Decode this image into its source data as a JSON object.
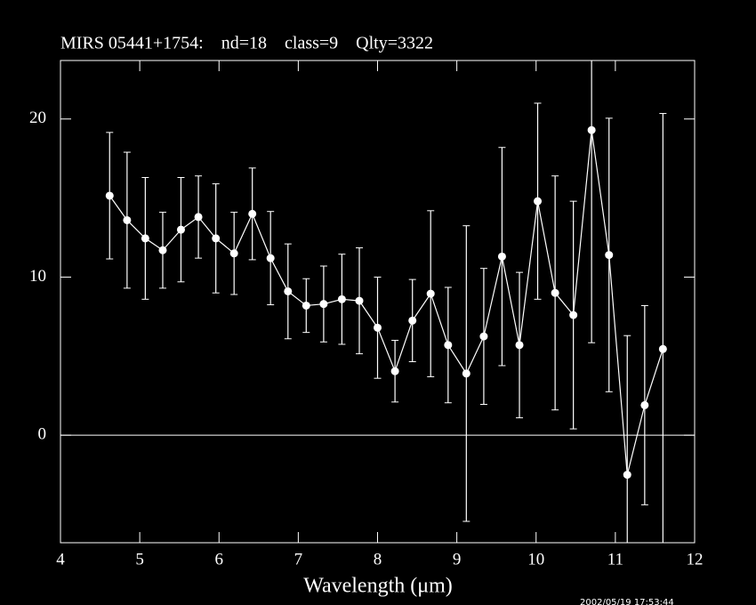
{
  "chart_data": {
    "type": "errorbar",
    "title": "MIRS 05441+1754:    nd=18    class=9    Qlty=3322",
    "x_label": "Wavelength (μm)",
    "timestamp": "2002/05/19 17:53:44",
    "color": "#ffffff",
    "zero_line": true,
    "xlim": [
      4,
      12
    ],
    "xticks": [
      4,
      5,
      6,
      7,
      8,
      9,
      10,
      11,
      12
    ],
    "ylim": [
      -6.8,
      23.7
    ],
    "yticks": [
      0,
      10,
      20
    ],
    "x": [
      4.62,
      4.84,
      5.07,
      5.29,
      5.52,
      5.74,
      5.96,
      6.19,
      6.42,
      6.65,
      6.87,
      7.1,
      7.32,
      7.55,
      7.77,
      8.0,
      8.22,
      8.44,
      8.67,
      8.89,
      9.12,
      9.34,
      9.57,
      9.79,
      10.02,
      10.24,
      10.47,
      10.7,
      10.92,
      11.15,
      11.37,
      11.6
    ],
    "values": [
      15.15,
      13.6,
      12.45,
      11.7,
      13.0,
      13.8,
      12.45,
      11.5,
      14.0,
      11.2,
      9.1,
      8.2,
      8.3,
      8.6,
      8.5,
      6.8,
      4.05,
      7.25,
      8.95,
      5.7,
      3.9,
      6.25,
      11.3,
      5.7,
      14.8,
      9.0,
      7.6,
      19.3,
      11.4,
      -2.5,
      1.9,
      5.45
    ],
    "errors": [
      4.0,
      4.3,
      3.85,
      2.4,
      3.3,
      2.6,
      3.45,
      2.6,
      2.9,
      2.95,
      3.0,
      1.7,
      2.4,
      2.85,
      3.35,
      3.2,
      1.95,
      2.6,
      5.25,
      3.65,
      9.35,
      4.3,
      6.9,
      4.6,
      6.2,
      7.4,
      7.2,
      13.45,
      8.65,
      8.8,
      6.3,
      14.9
    ]
  }
}
